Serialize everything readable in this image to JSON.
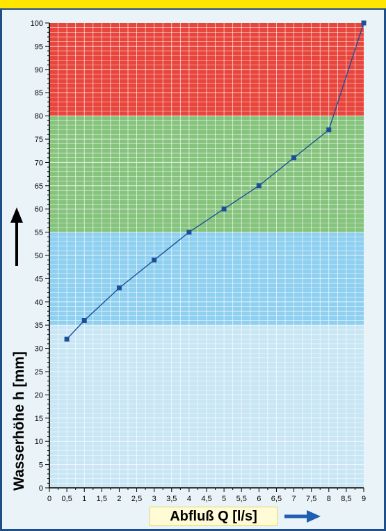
{
  "chart_data": {
    "type": "line",
    "xlabel": "Abfluß Q [l/s]",
    "ylabel": "Wasserhöhe h [mm]",
    "xlim": [
      0,
      9
    ],
    "ylim": [
      0,
      100
    ],
    "x_ticks": [
      0,
      0.5,
      1,
      1.5,
      2,
      2.5,
      3,
      3.5,
      4,
      4.5,
      5,
      5.5,
      6,
      6.5,
      7,
      7.5,
      8,
      8.5,
      9
    ],
    "x_tick_labels": [
      "0",
      "0,5",
      "1",
      "1,5",
      "2",
      "2,5",
      "3",
      "3,5",
      "4",
      "4,5",
      "5",
      "5,5",
      "6",
      "6,5",
      "7",
      "7,5",
      "8",
      "8,5",
      "9"
    ],
    "y_ticks": [
      0,
      5,
      10,
      15,
      20,
      25,
      30,
      35,
      40,
      45,
      50,
      55,
      60,
      65,
      70,
      75,
      80,
      85,
      90,
      95,
      100
    ],
    "y_tick_labels": [
      "0",
      "5",
      "10",
      "15",
      "20",
      "25",
      "30",
      "35",
      "40",
      "45",
      "50",
      "55",
      "60",
      "65",
      "70",
      "75",
      "80",
      "85",
      "90",
      "95",
      "100"
    ],
    "grid": true,
    "series": [
      {
        "x": [
          0.5,
          1,
          2,
          3,
          4,
          5,
          6,
          7,
          8,
          9
        ],
        "y": [
          32,
          36,
          43,
          49,
          55,
          60,
          65,
          71,
          77,
          100
        ],
        "color": "#1f4f9a"
      }
    ],
    "bands": [
      {
        "from": 0,
        "to": 35,
        "color": "#c9e6f5"
      },
      {
        "from": 35,
        "to": 55,
        "color": "#8fd0f0"
      },
      {
        "from": 55,
        "to": 80,
        "color": "#86c47e"
      },
      {
        "from": 80,
        "to": 100,
        "color": "#e8453c"
      }
    ]
  },
  "colors": {
    "frame": "#1f4f8a",
    "top_strip": "#ffe500",
    "arrow_up": "#000000",
    "arrow_right": "#1f5fb0"
  }
}
